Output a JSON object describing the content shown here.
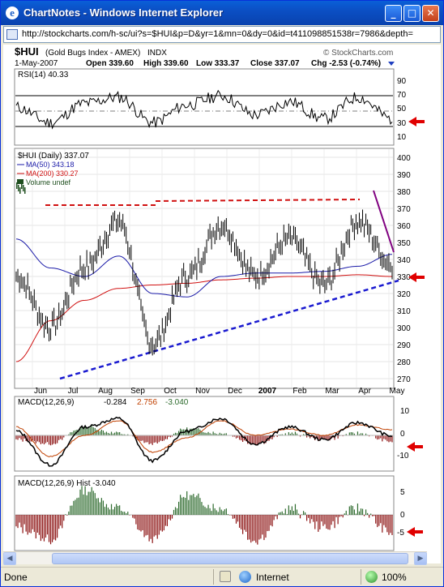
{
  "window": {
    "title": "ChartNotes - Windows Internet Explorer",
    "minimize_label": "_",
    "maximize_label": "□",
    "close_label": "✕"
  },
  "address": {
    "url": "http://stockcharts.com/h-sc/ui?s=$HUI&p=D&yr=1&mn=0&dy=0&id=t411098851538r=7986&depth="
  },
  "header": {
    "symbol": "$HUI",
    "name": "(Gold Bugs Index - AMEX)",
    "exchange": "INDX",
    "brand": "© StockCharts.com",
    "date": "1-May-2007",
    "open": "Open 339.60",
    "high": "High 339.60",
    "low": "Low 333.37",
    "close": "Close 337.07",
    "chg": "Chg -2.53 (-0.74%)"
  },
  "rsi_panel": {
    "label": "RSI(14) 40.33",
    "levels": [
      "90",
      "70",
      "50",
      "30",
      "10"
    ]
  },
  "price_panel": {
    "label": "$HUI (Daily) 337.07",
    "legend": [
      {
        "text": "MA(50) 343.18",
        "color": "#1a1aa8"
      },
      {
        "text": "MA(200) 330.27",
        "color": "#d01010"
      },
      {
        "text": "Volume undef",
        "color": "#1f4f1f"
      }
    ],
    "y_ticks": [
      "400",
      "390",
      "380",
      "370",
      "360",
      "350",
      "340",
      "330",
      "320",
      "310",
      "300",
      "290",
      "280",
      "270"
    ],
    "x_ticks": [
      "Jun",
      "Jul",
      "Aug",
      "Sep",
      "Oct",
      "Nov",
      "Dec",
      "2007",
      "Feb",
      "Mar",
      "Apr",
      "May"
    ]
  },
  "macd_panel": {
    "label": "MACD(12,26,9)",
    "value_1": "-0.284",
    "value_2": "2.756",
    "value_3": "-3.040",
    "y_ticks": [
      "10",
      "0",
      "-10"
    ]
  },
  "hist_panel": {
    "label": "MACD(12,26,9) Hist -3.040",
    "y_ticks": [
      "5",
      "0",
      "-5"
    ]
  },
  "colors": {
    "price_line": "#000000",
    "ma50": "#1a1aa8",
    "ma200": "#d01010",
    "resistance": "#d01010",
    "support": "#1a1ad0",
    "purple_trend": "#800080",
    "arrow": "#e00000",
    "hist": "#2e6b2e"
  },
  "chart_data": {
    "type": "line",
    "series": [
      {
        "name": "$HUI (Daily)",
        "x": [
          "Jun",
          "Jul",
          "Aug",
          "Sep",
          "Oct",
          "Nov",
          "Dec",
          "2007",
          "Feb",
          "Mar",
          "Apr",
          "May"
        ],
        "values": [
          330,
          300,
          335,
          362,
          290,
          330,
          360,
          330,
          352,
          325,
          362,
          337
        ]
      },
      {
        "name": "MA(50)",
        "x": [
          "Jun",
          "Jul",
          "Aug",
          "Sep",
          "Oct",
          "Nov",
          "Dec",
          "2007",
          "Feb",
          "Mar",
          "Apr",
          "May"
        ],
        "values": [
          352,
          335,
          330,
          342,
          320,
          318,
          330,
          332,
          332,
          333,
          336,
          343
        ]
      },
      {
        "name": "MA(200)",
        "x": [
          "Jun",
          "Jul",
          "Aug",
          "Sep",
          "Oct",
          "Nov",
          "Dec",
          "2007",
          "Feb",
          "Mar",
          "Apr",
          "May"
        ],
        "values": [
          280,
          304,
          316,
          323,
          325,
          326,
          328,
          329,
          330,
          330,
          331,
          330
        ]
      }
    ],
    "ylim": [
      270,
      400
    ]
  },
  "status": {
    "text": "Done",
    "zone": "Internet",
    "zoom": "100%"
  }
}
